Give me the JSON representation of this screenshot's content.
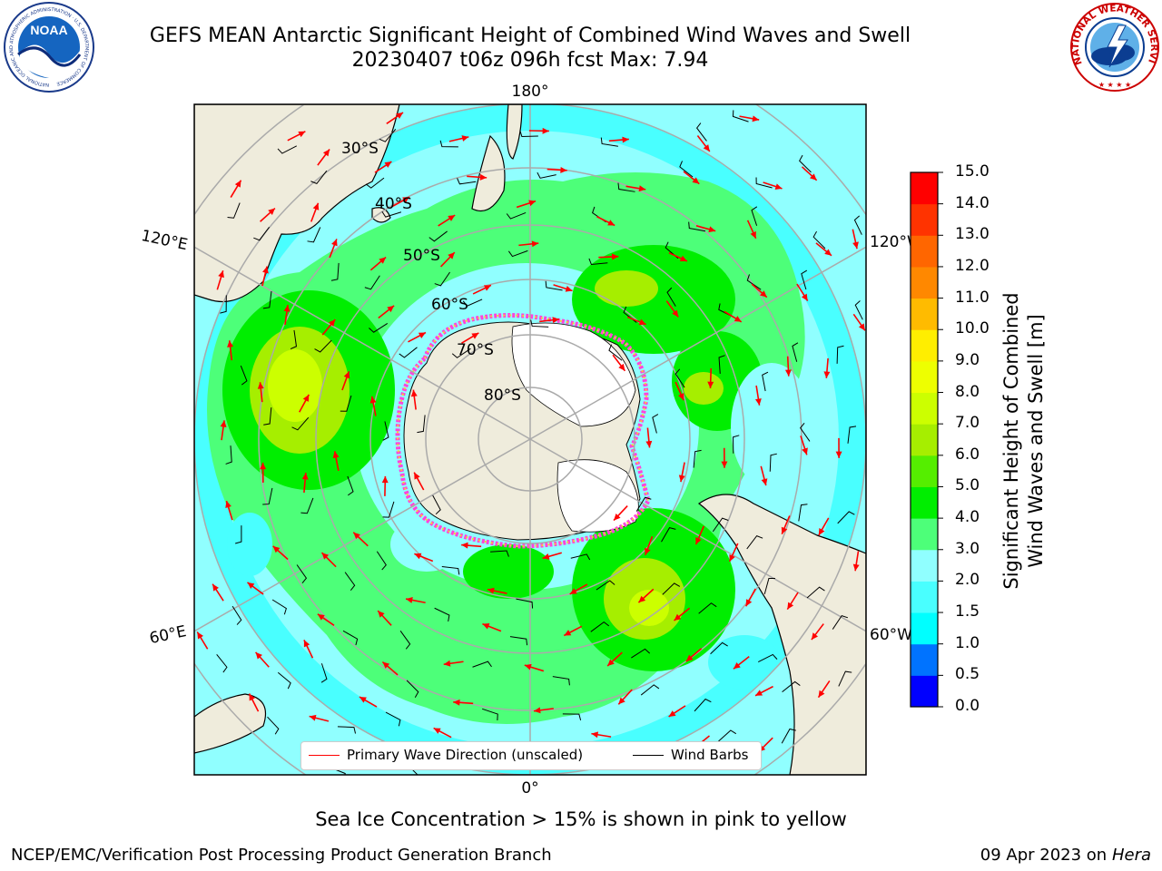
{
  "header": {
    "title_line1": "GEFS MEAN Antarctic Significant Height of Combined Wind Waves and Swell",
    "title_line2": "20230407 t06z 096h fcst   Max: 7.94"
  },
  "logos": {
    "noaa_text": "NOAA",
    "noaa_ring_text": "NATIONAL OCEANIC AND ATMOSPHERIC ADMINISTRATION · U.S. DEPARTMENT OF COMMERCE",
    "nws_ring_text": "NATIONAL WEATHER SERVICE"
  },
  "map": {
    "projection": "south-polar-stereographic",
    "longitude_labels": {
      "top": "180°",
      "bottom": "0°",
      "left_upper": "120°E",
      "left_lower": "60°E",
      "right_upper": "120°W",
      "right_lower": "60°W"
    },
    "latitude_labels": [
      "30°S",
      "40°S",
      "50°S",
      "60°S",
      "70°S",
      "80°S"
    ],
    "colors": {
      "land": "#efecdc",
      "ice_shelf": "#ffffff",
      "sea_ice_edge_pink": "#ff44dd",
      "sea_ice_edge_yellow": "#ffcc33",
      "wave_arrow": "#ff0000",
      "wind_barb": "#000000",
      "grid": "#aaaaaa"
    }
  },
  "colorbar": {
    "label_line1": "Significant Height of Combined",
    "label_line2": "Wind Waves and Swell [m]",
    "ticks": [
      "15.0",
      "14.0",
      "13.0",
      "12.0",
      "11.0",
      "10.0",
      "9.0",
      "8.0",
      "7.0",
      "6.0",
      "5.0",
      "4.0",
      "3.0",
      "2.0",
      "1.5",
      "1.0",
      "0.5",
      "0.0"
    ],
    "bins_bottom_to_top": [
      "#0000ff",
      "#0073ff",
      "#00ffff",
      "#49ffff",
      "#90ffff",
      "#4dff79",
      "#00ee00",
      "#55ee00",
      "#a6ee00",
      "#ccff00",
      "#eeff00",
      "#ffee00",
      "#ffbb00",
      "#ff8800",
      "#ff6600",
      "#ff3300",
      "#ff0000"
    ]
  },
  "legend": {
    "items": [
      {
        "label": "Primary Wave Direction (unscaled)",
        "color": "#ff0000"
      },
      {
        "label": "Wind Barbs",
        "color": "#000000"
      }
    ]
  },
  "subnote": "Sea Ice Concentration > 15% is shown in pink to yellow",
  "footer": {
    "left": "NCEP/EMC/Verification Post Processing Product Generation Branch",
    "right_date": "09 Apr 2023 on ",
    "right_machine": "Hera"
  }
}
